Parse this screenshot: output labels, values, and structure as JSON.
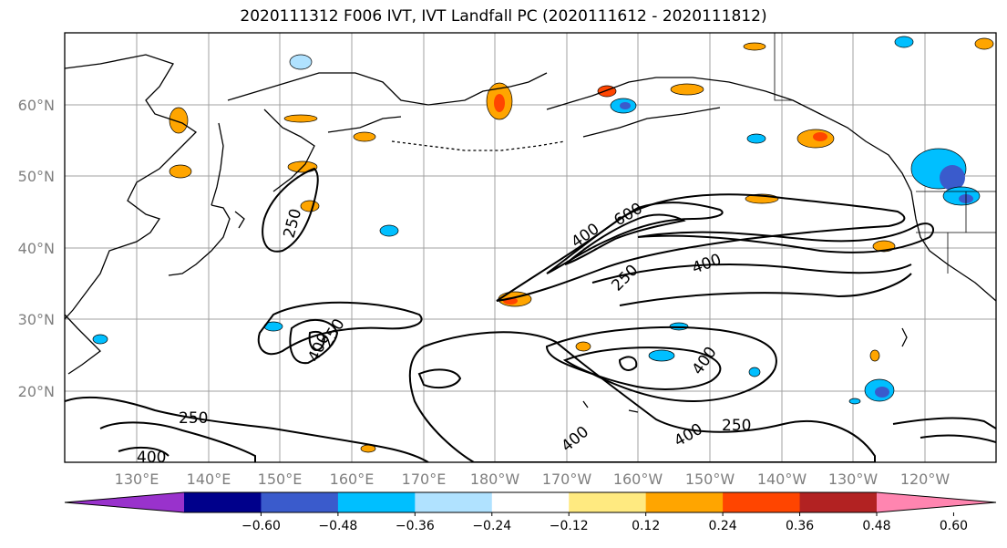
{
  "title": "2020111312 F006 IVT, IVT Landfall PC (2020111612 - 2020111812)",
  "lat_labels": [
    "60°N",
    "50°N",
    "40°N",
    "30°N",
    "20°N"
  ],
  "lon_labels": [
    "130°E",
    "140°E",
    "150°E",
    "160°E",
    "170°E",
    "180°W",
    "170°W",
    "160°W",
    "150°W",
    "140°W",
    "130°W",
    "120°W"
  ],
  "colorbar": {
    "colors": [
      "#9932cc",
      "#00008b",
      "#3a5bcc",
      "#00bfff",
      "#b0e2ff",
      "#ffffff",
      "#ffea80",
      "#ffa500",
      "#ff4500",
      "#b22222",
      "#ff85b0"
    ],
    "tick_labels": [
      "−0.60",
      "−0.48",
      "−0.36",
      "−0.24",
      "−0.12",
      "0.12",
      "0.24",
      "0.36",
      "0.48",
      "0.60"
    ]
  },
  "contour_labels": [
    "250",
    "400",
    "600",
    "400",
    "250",
    "400",
    "250",
    "400",
    "250",
    "400",
    "250",
    "400",
    "400",
    "250",
    "400",
    "250"
  ]
}
